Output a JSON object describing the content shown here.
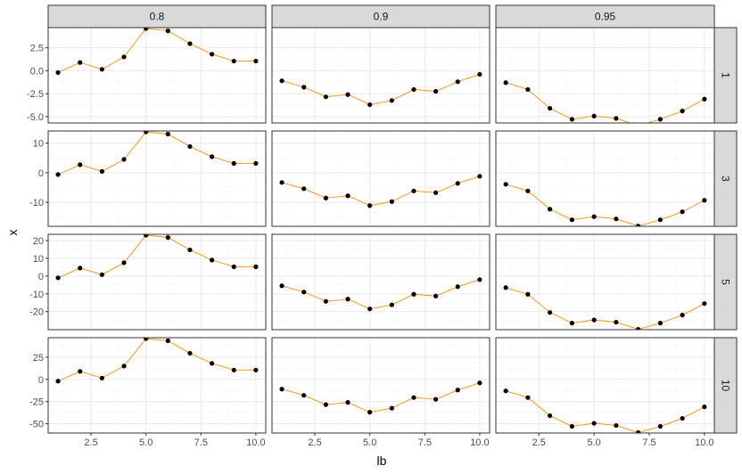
{
  "chart_data": {
    "type": "line",
    "facet_layout": "grid",
    "xlabel": "lb",
    "ylabel": "x",
    "grid": true,
    "x_ticks": [
      2.5,
      5.0,
      7.5,
      10.0
    ],
    "x_tick_labels": [
      "2.5",
      "5.0",
      "7.5",
      "10.0"
    ],
    "xlim": [
      0.55,
      10.45
    ],
    "col_labels": [
      "0.8",
      "0.9",
      "0.95"
    ],
    "row_labels": [
      "1",
      "3",
      "5",
      "10"
    ],
    "x": [
      1,
      2,
      3,
      4,
      5,
      6,
      7,
      8,
      9,
      10
    ],
    "series_values": {
      "0.8": [
        -0.2,
        0.9,
        0.15,
        1.5,
        4.6,
        4.35,
        2.95,
        1.8,
        1.05,
        1.05
      ],
      "0.9": [
        -1.1,
        -1.8,
        -2.85,
        -2.6,
        -3.7,
        -3.25,
        -2.05,
        -2.25,
        -1.2,
        -0.4
      ],
      "0.95": [
        -1.3,
        -2.05,
        -4.1,
        -5.3,
        -4.95,
        -5.2,
        -6.0,
        -5.3,
        -4.4,
        -3.1
      ]
    },
    "row_multipliers": {
      "1": 1,
      "3": 3,
      "5": 5,
      "10": 10
    },
    "panels_by_row": [
      {
        "row": "1",
        "ylim": [
          -5.7,
          4.7
        ],
        "y_ticks": [
          -5.0,
          -2.5,
          0.0,
          2.5
        ],
        "y_tick_labels": [
          "-5.0",
          "-2.5",
          "0.0",
          "2.5"
        ]
      },
      {
        "row": "3",
        "ylim": [
          -18.1,
          14.1
        ],
        "y_ticks": [
          -10,
          0,
          10
        ],
        "y_tick_labels": [
          "-10",
          "0",
          "10"
        ]
      },
      {
        "row": "5",
        "ylim": [
          -30.2,
          23.5
        ],
        "y_ticks": [
          -20,
          -10,
          0,
          10,
          20
        ],
        "y_tick_labels": [
          "-20",
          "-10",
          "0",
          "10",
          "20"
        ]
      },
      {
        "row": "10",
        "ylim": [
          -60.5,
          47
        ],
        "y_ticks": [
          -50,
          -25,
          0,
          25
        ],
        "y_tick_labels": [
          "-50",
          "-25",
          "0",
          "25"
        ]
      }
    ],
    "line_color": "#ff8c00",
    "point_color": "#000000"
  },
  "colors": {
    "panel_background": "#ffffff",
    "panel_border": "#333333",
    "grid_major": "#ebebeb",
    "grid_minor": "#f5f5f5",
    "strip_fill": "#d9d9d9"
  }
}
